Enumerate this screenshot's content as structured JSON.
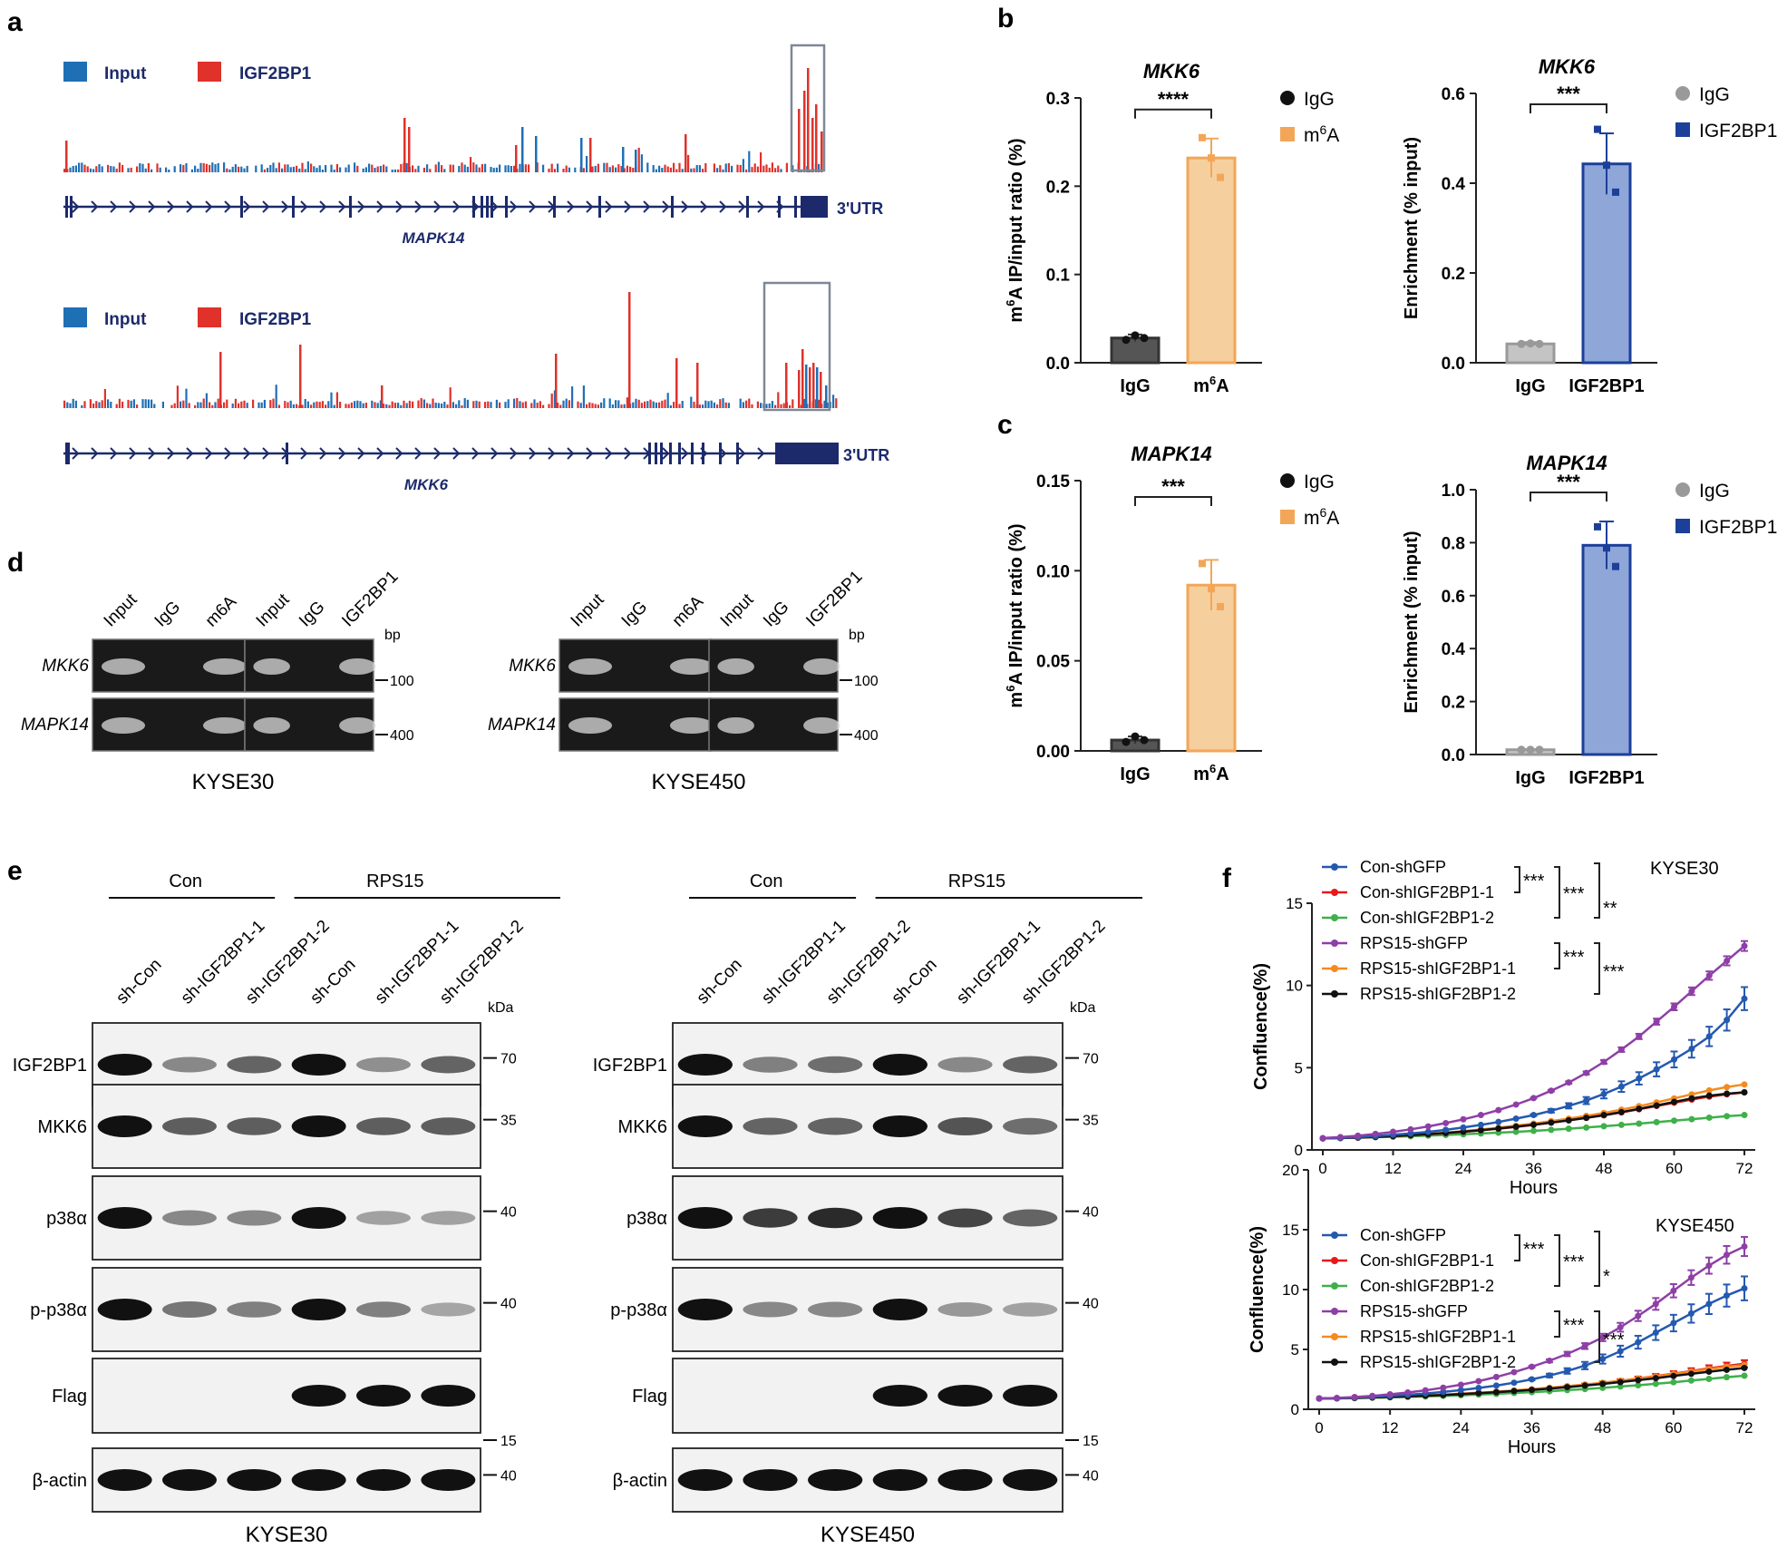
{
  "colors": {
    "input": "#1f6fb5",
    "igf": "#e0312b",
    "gene": "#1c2a6b",
    "igg_dark": "#555555",
    "m6a": "#f6cf9f",
    "m6a_edge": "#f3a657",
    "igg_light": "#c4c4c4",
    "igf_fill": "#8ea6d8",
    "igf_edge": "#1c3f99",
    "series": [
      "#2459b0",
      "#e41a1c",
      "#3fb04a",
      "#8e3fa6",
      "#f58a1f",
      "#111111"
    ]
  },
  "panel_a": {
    "label": "a",
    "tracks": [
      {
        "legend": [
          "Input",
          "IGF2BP1"
        ],
        "gene": "MAPK14",
        "utr": "3'UTR"
      },
      {
        "legend": [
          "Input",
          "IGF2BP1"
        ],
        "gene": "MKK6",
        "utr": "3'UTR"
      }
    ]
  },
  "panel_b_label": "b",
  "panel_c_label": "c",
  "panel_d": {
    "label": "d",
    "bp": "bp",
    "groups": [
      {
        "cell": "KYSE30",
        "lanesA": [
          "Input",
          "IgG",
          "m6A"
        ],
        "lanesB": [
          "Input",
          "IgG",
          "IGF2BP1"
        ]
      },
      {
        "cell": "KYSE450",
        "lanesA": [
          "Input",
          "IgG",
          "m6A"
        ],
        "lanesB": [
          "Input",
          "IgG",
          "IGF2BP1"
        ]
      }
    ],
    "rows": [
      "MKK6",
      "MAPK14"
    ],
    "sizes": [
      "100",
      "400"
    ]
  },
  "panel_e": {
    "label": "e",
    "kda": "kDa",
    "blots": [
      {
        "cell": "KYSE30",
        "groups": [
          "Con",
          "RPS15"
        ],
        "lanes": [
          "sh-Con",
          "sh-IGF2BP1-1",
          "sh-IGF2BP1-2",
          "sh-Con",
          "sh-IGF2BP1-1",
          "sh-IGF2BP1-2"
        ],
        "rows": [
          "IGF2BP1",
          "MKK6",
          "p38α",
          "p-p38α",
          "Flag",
          "β-actin"
        ],
        "markers": [
          "70",
          "35",
          "40",
          "40",
          "15",
          "40"
        ]
      },
      {
        "cell": "KYSE450",
        "groups": [
          "Con",
          "RPS15"
        ],
        "lanes": [
          "sh-Con",
          "sh-IGF2BP1-1",
          "sh-IGF2BP1-2",
          "sh-Con",
          "sh-IGF2BP1-1",
          "sh-IGF2BP1-2"
        ],
        "rows": [
          "IGF2BP1",
          "MKK6",
          "p38α",
          "p-p38α",
          "Flag",
          "β-actin"
        ],
        "markers": [
          "70",
          "35",
          "40",
          "40",
          "15",
          "40"
        ]
      }
    ]
  },
  "panel_f_label": "f",
  "chart_data": [
    {
      "id": "b1",
      "type": "bar",
      "title": "MKK6",
      "ylabel_pre": "m",
      "ylabel_sup": "6",
      "ylabel_post": "A IP/input ratio (%)",
      "ylim": [
        0,
        0.3
      ],
      "yticks": [
        "0.0",
        "0.1",
        "0.2",
        "0.3"
      ],
      "categories": [
        "IgG",
        "m6A"
      ],
      "values": [
        0.028,
        0.232
      ],
      "errors": [
        0.004,
        0.022
      ],
      "points": [
        [
          0.026,
          0.031,
          0.028
        ],
        [
          0.255,
          0.232,
          0.21
        ]
      ],
      "legend": [
        "IgG",
        "m6A"
      ],
      "sig": "****"
    },
    {
      "id": "b2",
      "type": "bar",
      "title": "MKK6",
      "ylabel": "Enrichment (% input)",
      "ylim": [
        0,
        0.6
      ],
      "yticks": [
        "0.0",
        "0.2",
        "0.4",
        "0.6"
      ],
      "categories": [
        "IgG",
        "IGF2BP1"
      ],
      "values": [
        0.042,
        0.443
      ],
      "errors": [
        0.004,
        0.068
      ],
      "points": [
        [
          0.042,
          0.043,
          0.042
        ],
        [
          0.52,
          0.44,
          0.38
        ]
      ],
      "legend": [
        "IgG",
        "IGF2BP1"
      ],
      "sig": "***"
    },
    {
      "id": "c1",
      "type": "bar",
      "title": "MAPK14",
      "ylabel_pre": "m",
      "ylabel_sup": "6",
      "ylabel_post": "A IP/input ratio (%)",
      "ylim": [
        0,
        0.15
      ],
      "yticks": [
        "0.00",
        "0.05",
        "0.10",
        "0.15"
      ],
      "categories": [
        "IgG",
        "m6A"
      ],
      "values": [
        0.006,
        0.092
      ],
      "errors": [
        0.002,
        0.014
      ],
      "points": [
        [
          0.005,
          0.008,
          0.006
        ],
        [
          0.104,
          0.09,
          0.08
        ]
      ],
      "legend": [
        "IgG",
        "m6A"
      ],
      "sig": "***"
    },
    {
      "id": "c2",
      "type": "bar",
      "title": "MAPK14",
      "ylabel": "Enrichment (% input)",
      "ylim": [
        0,
        1.0
      ],
      "yticks": [
        "0.0",
        "0.2",
        "0.4",
        "0.6",
        "0.8",
        "1.0"
      ],
      "categories": [
        "IgG",
        "IGF2BP1"
      ],
      "values": [
        0.018,
        0.79
      ],
      "errors": [
        0.002,
        0.09
      ],
      "points": [
        [
          0.018,
          0.018,
          0.018
        ],
        [
          0.86,
          0.78,
          0.71
        ]
      ],
      "legend": [
        "IgG",
        "IGF2BP1"
      ],
      "sig": "***"
    },
    {
      "id": "f1",
      "type": "line",
      "title": "KYSE30",
      "xlabel": "Hours",
      "ylabel": "Confluence(%)",
      "ylim": [
        0,
        15
      ],
      "yticks": [
        "0",
        "5",
        "10",
        "15"
      ],
      "xticks": [
        "0",
        "12",
        "24",
        "36",
        "48",
        "60",
        "72"
      ],
      "x": [
        0,
        3,
        6,
        9,
        12,
        15,
        18,
        21,
        24,
        27,
        30,
        33,
        36,
        39,
        42,
        45,
        48,
        51,
        54,
        57,
        60,
        63,
        66,
        69,
        72
      ],
      "series": [
        {
          "name": "Con-shGFP",
          "values": [
            0.7,
            0.73,
            0.78,
            0.84,
            0.92,
            1.0,
            1.1,
            1.22,
            1.36,
            1.52,
            1.7,
            1.9,
            2.12,
            2.38,
            2.68,
            3.0,
            3.4,
            3.85,
            4.35,
            4.9,
            5.5,
            6.15,
            6.9,
            7.9,
            9.2
          ],
          "err": 0.7
        },
        {
          "name": "Con-shIGF2BP1-1",
          "values": [
            0.7,
            0.72,
            0.75,
            0.79,
            0.84,
            0.89,
            0.95,
            1.02,
            1.1,
            1.19,
            1.29,
            1.4,
            1.52,
            1.66,
            1.8,
            1.95,
            2.1,
            2.28,
            2.47,
            2.67,
            2.87,
            3.06,
            3.24,
            3.38,
            3.5
          ],
          "err": 0
        },
        {
          "name": "Con-shIGF2BP1-2",
          "values": [
            0.7,
            0.72,
            0.74,
            0.77,
            0.8,
            0.83,
            0.87,
            0.91,
            0.95,
            1.0,
            1.05,
            1.1,
            1.16,
            1.22,
            1.29,
            1.36,
            1.44,
            1.52,
            1.6,
            1.69,
            1.78,
            1.87,
            1.96,
            2.05,
            2.12
          ],
          "err": 0
        },
        {
          "name": "RPS15-shGFP",
          "values": [
            0.72,
            0.78,
            0.86,
            0.97,
            1.1,
            1.25,
            1.43,
            1.63,
            1.86,
            2.12,
            2.42,
            2.76,
            3.15,
            3.6,
            4.1,
            4.68,
            5.35,
            6.1,
            6.9,
            7.8,
            8.7,
            9.65,
            10.6,
            11.5,
            12.4
          ],
          "err": 0.3
        },
        {
          "name": "RPS15-shIGF2BP1-1",
          "values": [
            0.7,
            0.72,
            0.75,
            0.79,
            0.84,
            0.9,
            0.97,
            1.05,
            1.14,
            1.24,
            1.35,
            1.47,
            1.6,
            1.75,
            1.9,
            2.07,
            2.25,
            2.45,
            2.66,
            2.89,
            3.13,
            3.38,
            3.62,
            3.82,
            3.98
          ],
          "err": 0
        },
        {
          "name": "RPS15-shIGF2BP1-2",
          "values": [
            0.7,
            0.72,
            0.75,
            0.79,
            0.84,
            0.9,
            0.96,
            1.03,
            1.11,
            1.2,
            1.3,
            1.41,
            1.53,
            1.66,
            1.8,
            1.95,
            2.12,
            2.3,
            2.5,
            2.7,
            2.92,
            3.13,
            3.3,
            3.42,
            3.5
          ],
          "err": 0
        }
      ],
      "sig_left": [
        "***",
        "***",
        "**"
      ],
      "sig_right": [
        "***",
        "***"
      ]
    },
    {
      "id": "f2",
      "type": "line",
      "title": "KYSE450",
      "xlabel": "Hours",
      "ylabel": "Confluence(%)",
      "ylim": [
        0,
        20
      ],
      "yticks": [
        "0",
        "5",
        "10",
        "15",
        "20"
      ],
      "xticks": [
        "0",
        "12",
        "24",
        "36",
        "48",
        "60",
        "72"
      ],
      "x": [
        0,
        3,
        6,
        9,
        12,
        15,
        18,
        21,
        24,
        27,
        30,
        33,
        36,
        39,
        42,
        45,
        48,
        51,
        54,
        57,
        60,
        63,
        66,
        69,
        72
      ],
      "series": [
        {
          "name": "Con-shGFP",
          "values": [
            0.9,
            0.93,
            0.98,
            1.04,
            1.12,
            1.21,
            1.32,
            1.45,
            1.6,
            1.78,
            1.98,
            2.22,
            2.5,
            2.82,
            3.2,
            3.65,
            4.2,
            4.85,
            5.6,
            6.4,
            7.2,
            8.0,
            8.8,
            9.5,
            10.1
          ],
          "err": 1.0
        },
        {
          "name": "Con-shIGF2BP1-1",
          "values": [
            0.9,
            0.92,
            0.95,
            0.99,
            1.03,
            1.08,
            1.14,
            1.2,
            1.27,
            1.35,
            1.44,
            1.54,
            1.65,
            1.77,
            1.9,
            2.05,
            2.2,
            2.38,
            2.57,
            2.77,
            2.98,
            3.2,
            3.42,
            3.62,
            3.8
          ],
          "err": 0.3
        },
        {
          "name": "Con-shIGF2BP1-2",
          "values": [
            0.9,
            0.91,
            0.93,
            0.96,
            0.99,
            1.03,
            1.07,
            1.12,
            1.17,
            1.23,
            1.29,
            1.36,
            1.43,
            1.51,
            1.6,
            1.69,
            1.79,
            1.9,
            2.01,
            2.13,
            2.26,
            2.4,
            2.54,
            2.68,
            2.8
          ],
          "err": 0
        },
        {
          "name": "RPS15-shGFP",
          "values": [
            0.9,
            0.95,
            1.02,
            1.12,
            1.25,
            1.4,
            1.58,
            1.8,
            2.05,
            2.35,
            2.7,
            3.1,
            3.55,
            4.05,
            4.62,
            5.28,
            6.0,
            6.85,
            7.8,
            8.8,
            9.9,
            11.0,
            12.0,
            12.9,
            13.6
          ],
          "err": 0.8
        },
        {
          "name": "RPS15-shIGF2BP1-1",
          "values": [
            0.9,
            0.92,
            0.95,
            0.99,
            1.04,
            1.09,
            1.15,
            1.22,
            1.3,
            1.38,
            1.47,
            1.57,
            1.68,
            1.8,
            1.93,
            2.07,
            2.22,
            2.38,
            2.56,
            2.75,
            2.95,
            3.15,
            3.35,
            3.55,
            3.7
          ],
          "err": 0
        },
        {
          "name": "RPS15-shIGF2BP1-2",
          "values": [
            0.9,
            0.92,
            0.95,
            0.99,
            1.03,
            1.08,
            1.14,
            1.2,
            1.27,
            1.35,
            1.43,
            1.52,
            1.62,
            1.73,
            1.85,
            1.98,
            2.12,
            2.27,
            2.43,
            2.6,
            2.78,
            2.96,
            3.14,
            3.3,
            3.45
          ],
          "err": 0
        }
      ],
      "sig_left": [
        "***",
        "***",
        "*"
      ],
      "sig_right": [
        "***",
        "***"
      ]
    }
  ]
}
